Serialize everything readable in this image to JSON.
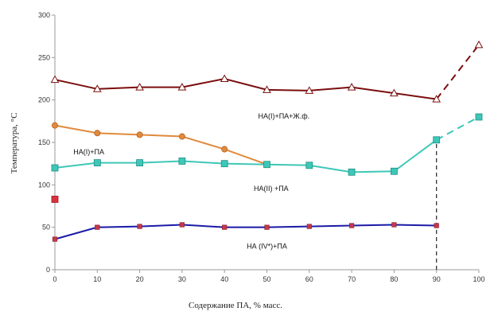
{
  "chart_data": {
    "type": "line",
    "title": "",
    "xlabel": "Содержание ПА, % масс.",
    "ylabel": "Температура, °C",
    "xlim": [
      0,
      100
    ],
    "ylim": [
      0,
      300
    ],
    "x_ticks": [
      "0",
      "10",
      "20",
      "30",
      "40",
      "50",
      "60",
      "70",
      "80",
      "90",
      "100"
    ],
    "y_ticks": [
      "0",
      "50",
      "100",
      "150",
      "200",
      "250",
      "300"
    ],
    "grid": false,
    "legend": "none",
    "series": [
      {
        "color": "#7a0e0e",
        "marker": "triangle",
        "points": [
          [
            0,
            224
          ],
          [
            10,
            213
          ],
          [
            20,
            215
          ],
          [
            30,
            215
          ],
          [
            40,
            225
          ],
          [
            50,
            212
          ],
          [
            60,
            211
          ],
          [
            70,
            215
          ],
          [
            80,
            208
          ],
          [
            90,
            201
          ]
        ],
        "dashed_points": [
          [
            90,
            201
          ],
          [
            100,
            265
          ]
        ]
      },
      {
        "color": "#e08a3c",
        "marker": "circle",
        "points": [
          [
            0,
            170
          ],
          [
            10,
            161
          ],
          [
            20,
            159
          ],
          [
            30,
            157
          ],
          [
            40,
            142
          ],
          [
            50,
            124
          ]
        ]
      },
      {
        "color": "#3ec7b8",
        "marker": "square",
        "points": [
          [
            0,
            120
          ],
          [
            10,
            126
          ],
          [
            20,
            126
          ],
          [
            30,
            128
          ],
          [
            40,
            125
          ],
          [
            50,
            124
          ],
          [
            60,
            123
          ],
          [
            70,
            115
          ],
          [
            80,
            116
          ],
          [
            90,
            153
          ]
        ],
        "dashed_points": [
          [
            90,
            153
          ],
          [
            100,
            180
          ]
        ]
      },
      {
        "color": "#1a1aa8",
        "marker": "small-square",
        "points": [
          [
            0,
            36
          ],
          [
            10,
            50
          ],
          [
            20,
            51
          ],
          [
            30,
            53
          ],
          [
            40,
            50
          ],
          [
            50,
            50
          ],
          [
            60,
            51
          ],
          [
            70,
            52
          ],
          [
            80,
            53
          ],
          [
            90,
            52
          ]
        ]
      }
    ],
    "isolated_points": [
      {
        "x": 0,
        "y": 83,
        "color": "#d9303c",
        "marker": "square"
      }
    ],
    "reference_lines": [
      {
        "x": 90,
        "y_from": 0,
        "y_to": 153,
        "style": "dashed",
        "color": "#222222"
      }
    ],
    "annotations": [
      {
        "text": "НА(I)+ПА+Ж.ф.",
        "x": 54,
        "y": 178
      },
      {
        "text": "НА(I)+ПА",
        "x": 8,
        "y": 136
      },
      {
        "text": "НА(II) +ПА",
        "x": 51,
        "y": 93
      },
      {
        "text": "НА (IV*)+ПА",
        "x": 50,
        "y": 25
      }
    ]
  }
}
